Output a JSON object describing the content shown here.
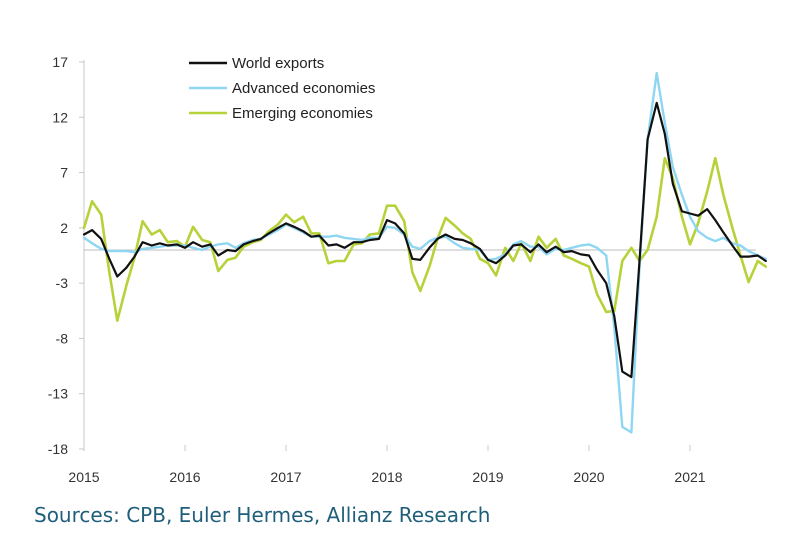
{
  "chart_data": {
    "type": "line",
    "ylim": [
      -18,
      17
    ],
    "yticks": [
      "17",
      "12",
      "7",
      "2",
      "-3",
      "-8",
      "-13",
      "-18"
    ],
    "ytick_values": [
      17,
      12,
      7,
      2,
      -3,
      -8,
      -13,
      -18
    ],
    "xlim": [
      2015.0,
      2021.85
    ],
    "xtick_labels": [
      "2015",
      "2016",
      "2017",
      "2018",
      "2019",
      "2020",
      "2021"
    ],
    "xtick_values": [
      2015,
      2016,
      2017,
      2018,
      2019,
      2020,
      2021
    ],
    "zero_line": true,
    "grid": false,
    "legend_placement": "top-left",
    "series": [
      {
        "name": "World exports",
        "color": "#111111",
        "points": [
          [
            2015.0,
            1.4
          ],
          [
            2015.08,
            1.8
          ],
          [
            2015.17,
            1.0
          ],
          [
            2015.25,
            -0.8
          ],
          [
            2015.33,
            -2.4
          ],
          [
            2015.42,
            -1.6
          ],
          [
            2015.5,
            -0.6
          ],
          [
            2015.58,
            0.7
          ],
          [
            2015.67,
            0.4
          ],
          [
            2015.75,
            0.6
          ],
          [
            2015.83,
            0.4
          ],
          [
            2015.92,
            0.5
          ],
          [
            2016.0,
            0.2
          ],
          [
            2016.08,
            0.7
          ],
          [
            2016.17,
            0.3
          ],
          [
            2016.25,
            0.5
          ],
          [
            2016.33,
            -0.5
          ],
          [
            2016.42,
            0.0
          ],
          [
            2016.5,
            -0.1
          ],
          [
            2016.58,
            0.5
          ],
          [
            2016.67,
            0.8
          ],
          [
            2016.75,
            1.0
          ],
          [
            2016.83,
            1.5
          ],
          [
            2016.92,
            2.0
          ],
          [
            2017.0,
            2.4
          ],
          [
            2017.08,
            2.1
          ],
          [
            2017.17,
            1.7
          ],
          [
            2017.25,
            1.2
          ],
          [
            2017.33,
            1.3
          ],
          [
            2017.42,
            0.4
          ],
          [
            2017.5,
            0.5
          ],
          [
            2017.58,
            0.2
          ],
          [
            2017.67,
            0.7
          ],
          [
            2017.75,
            0.7
          ],
          [
            2017.83,
            0.9
          ],
          [
            2017.92,
            1.0
          ],
          [
            2018.0,
            2.7
          ],
          [
            2018.08,
            2.4
          ],
          [
            2018.17,
            1.5
          ],
          [
            2018.25,
            -0.8
          ],
          [
            2018.33,
            -0.9
          ],
          [
            2018.42,
            0.2
          ],
          [
            2018.5,
            1.0
          ],
          [
            2018.58,
            1.4
          ],
          [
            2018.67,
            1.0
          ],
          [
            2018.75,
            0.9
          ],
          [
            2018.83,
            0.6
          ],
          [
            2018.92,
            0.1
          ],
          [
            2019.0,
            -0.9
          ],
          [
            2019.08,
            -1.2
          ],
          [
            2019.17,
            -0.5
          ],
          [
            2019.25,
            0.4
          ],
          [
            2019.33,
            0.5
          ],
          [
            2019.42,
            -0.2
          ],
          [
            2019.5,
            0.5
          ],
          [
            2019.58,
            -0.2
          ],
          [
            2019.67,
            0.3
          ],
          [
            2019.75,
            -0.2
          ],
          [
            2019.83,
            -0.1
          ],
          [
            2019.92,
            -0.4
          ],
          [
            2020.0,
            -0.5
          ],
          [
            2020.08,
            -1.8
          ],
          [
            2020.17,
            -3.0
          ],
          [
            2020.25,
            -6.0
          ],
          [
            2020.33,
            -11.0
          ],
          [
            2020.42,
            -11.5
          ],
          [
            2020.5,
            -1.0
          ],
          [
            2020.58,
            10.0
          ],
          [
            2020.67,
            13.3
          ],
          [
            2020.75,
            10.5
          ],
          [
            2020.83,
            6.0
          ],
          [
            2020.92,
            3.5
          ],
          [
            2021.0,
            3.3
          ],
          [
            2021.08,
            3.1
          ],
          [
            2021.17,
            3.7
          ],
          [
            2021.25,
            2.7
          ],
          [
            2021.33,
            1.6
          ],
          [
            2021.42,
            0.4
          ],
          [
            2021.5,
            -0.6
          ],
          [
            2021.58,
            -0.6
          ],
          [
            2021.67,
            -0.5
          ],
          [
            2021.75,
            -1.0
          ]
        ]
      },
      {
        "name": "Advanced economies",
        "color": "#8fd6f2",
        "points": [
          [
            2015.0,
            1.1
          ],
          [
            2015.08,
            0.6
          ],
          [
            2015.17,
            0.1
          ],
          [
            2015.25,
            -0.1
          ],
          [
            2015.33,
            -0.1
          ],
          [
            2015.42,
            -0.1
          ],
          [
            2015.5,
            -0.2
          ],
          [
            2015.58,
            0.1
          ],
          [
            2015.67,
            0.2
          ],
          [
            2015.75,
            0.3
          ],
          [
            2015.83,
            0.4
          ],
          [
            2015.92,
            0.4
          ],
          [
            2016.0,
            0.4
          ],
          [
            2016.08,
            0.2
          ],
          [
            2016.17,
            0.0
          ],
          [
            2016.25,
            0.3
          ],
          [
            2016.33,
            0.5
          ],
          [
            2016.42,
            0.6
          ],
          [
            2016.5,
            0.2
          ],
          [
            2016.58,
            0.6
          ],
          [
            2016.67,
            0.9
          ],
          [
            2016.75,
            1.0
          ],
          [
            2016.83,
            1.4
          ],
          [
            2016.92,
            1.8
          ],
          [
            2017.0,
            2.3
          ],
          [
            2017.08,
            2.0
          ],
          [
            2017.17,
            1.6
          ],
          [
            2017.25,
            1.2
          ],
          [
            2017.33,
            1.2
          ],
          [
            2017.42,
            1.2
          ],
          [
            2017.5,
            1.3
          ],
          [
            2017.58,
            1.1
          ],
          [
            2017.67,
            1.0
          ],
          [
            2017.75,
            0.9
          ],
          [
            2017.83,
            1.1
          ],
          [
            2017.92,
            1.1
          ],
          [
            2018.0,
            2.1
          ],
          [
            2018.08,
            2.0
          ],
          [
            2018.17,
            1.4
          ],
          [
            2018.25,
            0.3
          ],
          [
            2018.33,
            0.1
          ],
          [
            2018.42,
            0.8
          ],
          [
            2018.5,
            1.1
          ],
          [
            2018.58,
            1.2
          ],
          [
            2018.67,
            0.6
          ],
          [
            2018.75,
            0.2
          ],
          [
            2018.83,
            0.1
          ],
          [
            2018.92,
            0.0
          ],
          [
            2019.0,
            -0.9
          ],
          [
            2019.08,
            -0.8
          ],
          [
            2019.17,
            -0.4
          ],
          [
            2019.25,
            0.5
          ],
          [
            2019.33,
            0.8
          ],
          [
            2019.42,
            0.3
          ],
          [
            2019.5,
            0.3
          ],
          [
            2019.58,
            -0.4
          ],
          [
            2019.67,
            0.1
          ],
          [
            2019.75,
            0.0
          ],
          [
            2019.83,
            0.2
          ],
          [
            2019.92,
            0.4
          ],
          [
            2020.0,
            0.5
          ],
          [
            2020.08,
            0.2
          ],
          [
            2020.17,
            -0.5
          ],
          [
            2020.25,
            -7.0
          ],
          [
            2020.33,
            -16.0
          ],
          [
            2020.42,
            -16.5
          ],
          [
            2020.5,
            -1.5
          ],
          [
            2020.58,
            10.0
          ],
          [
            2020.67,
            16.0
          ],
          [
            2020.75,
            11.5
          ],
          [
            2020.83,
            7.5
          ],
          [
            2020.92,
            5.0
          ],
          [
            2021.0,
            3.0
          ],
          [
            2021.08,
            1.7
          ],
          [
            2021.17,
            1.1
          ],
          [
            2021.25,
            0.8
          ],
          [
            2021.33,
            1.1
          ],
          [
            2021.42,
            0.6
          ],
          [
            2021.5,
            0.4
          ],
          [
            2021.58,
            -0.1
          ],
          [
            2021.67,
            -0.5
          ],
          [
            2021.75,
            -0.8
          ]
        ]
      },
      {
        "name": "Emerging economies",
        "color": "#b6d23a",
        "points": [
          [
            2015.0,
            2.0
          ],
          [
            2015.08,
            4.4
          ],
          [
            2015.17,
            3.2
          ],
          [
            2015.25,
            -2.0
          ],
          [
            2015.33,
            -6.4
          ],
          [
            2015.42,
            -3.2
          ],
          [
            2015.5,
            -0.7
          ],
          [
            2015.58,
            2.6
          ],
          [
            2015.67,
            1.4
          ],
          [
            2015.75,
            1.8
          ],
          [
            2015.83,
            0.7
          ],
          [
            2015.92,
            0.8
          ],
          [
            2016.0,
            0.3
          ],
          [
            2016.08,
            2.1
          ],
          [
            2016.17,
            0.9
          ],
          [
            2016.25,
            0.7
          ],
          [
            2016.33,
            -1.9
          ],
          [
            2016.42,
            -0.9
          ],
          [
            2016.5,
            -0.7
          ],
          [
            2016.58,
            0.3
          ],
          [
            2016.67,
            0.7
          ],
          [
            2016.75,
            0.9
          ],
          [
            2016.83,
            1.7
          ],
          [
            2016.92,
            2.3
          ],
          [
            2017.0,
            3.2
          ],
          [
            2017.08,
            2.5
          ],
          [
            2017.17,
            3.0
          ],
          [
            2017.25,
            1.5
          ],
          [
            2017.33,
            1.5
          ],
          [
            2017.42,
            -1.2
          ],
          [
            2017.5,
            -1.0
          ],
          [
            2017.58,
            -1.0
          ],
          [
            2017.67,
            0.5
          ],
          [
            2017.75,
            0.6
          ],
          [
            2017.83,
            1.4
          ],
          [
            2017.92,
            1.5
          ],
          [
            2018.0,
            4.0
          ],
          [
            2018.08,
            4.0
          ],
          [
            2018.17,
            2.6
          ],
          [
            2018.25,
            -2.0
          ],
          [
            2018.33,
            -3.7
          ],
          [
            2018.42,
            -1.5
          ],
          [
            2018.5,
            1.0
          ],
          [
            2018.58,
            2.9
          ],
          [
            2018.67,
            2.2
          ],
          [
            2018.75,
            1.5
          ],
          [
            2018.83,
            1.0
          ],
          [
            2018.92,
            -0.8
          ],
          [
            2019.0,
            -1.2
          ],
          [
            2019.08,
            -2.3
          ],
          [
            2019.17,
            0.2
          ],
          [
            2019.25,
            -1.0
          ],
          [
            2019.33,
            0.6
          ],
          [
            2019.42,
            -1.0
          ],
          [
            2019.5,
            1.2
          ],
          [
            2019.58,
            0.2
          ],
          [
            2019.67,
            1.0
          ],
          [
            2019.75,
            -0.5
          ],
          [
            2019.83,
            -0.8
          ],
          [
            2019.92,
            -1.2
          ],
          [
            2020.0,
            -1.5
          ],
          [
            2020.08,
            -4.0
          ],
          [
            2020.17,
            -5.6
          ],
          [
            2020.25,
            -5.5
          ],
          [
            2020.33,
            -1.0
          ],
          [
            2020.42,
            0.2
          ],
          [
            2020.5,
            -1.0
          ],
          [
            2020.58,
            0.0
          ],
          [
            2020.67,
            3.0
          ],
          [
            2020.75,
            8.3
          ],
          [
            2020.83,
            6.5
          ],
          [
            2020.92,
            3.0
          ],
          [
            2021.0,
            0.5
          ],
          [
            2021.08,
            2.4
          ],
          [
            2021.17,
            5.3
          ],
          [
            2021.25,
            8.3
          ],
          [
            2021.33,
            5.0
          ],
          [
            2021.42,
            2.0
          ],
          [
            2021.5,
            -0.5
          ],
          [
            2021.58,
            -2.9
          ],
          [
            2021.67,
            -1.0
          ],
          [
            2021.75,
            -1.5
          ]
        ]
      }
    ]
  },
  "source_text": "Sources: CPB, Euler Hermes, Allianz Research"
}
